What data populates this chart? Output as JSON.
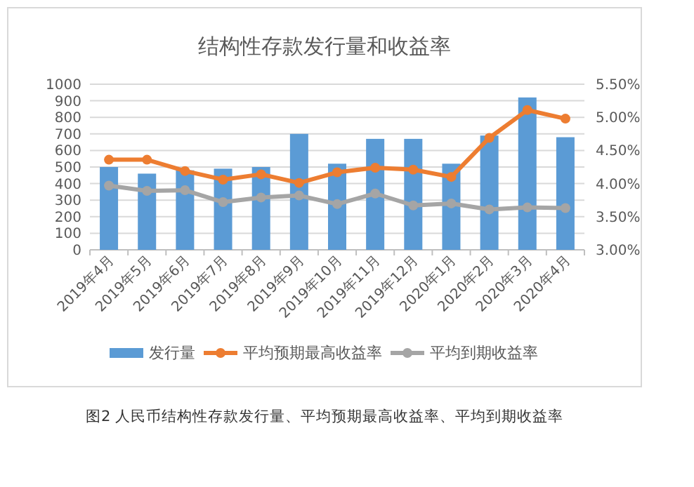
{
  "chart_data": {
    "type": "bar",
    "title": "结构性存款发行量和收益率",
    "categories": [
      "2019年4月",
      "2019年5月",
      "2019年6月",
      "2019年7月",
      "2019年8月",
      "2019年9月",
      "2019年10月",
      "2019年11月",
      "2019年12月",
      "2020年1月",
      "2020年2月",
      "2020年3月",
      "2020年4月"
    ],
    "series": [
      {
        "name": "发行量",
        "color": "#5b9bd5",
        "values": [
          500,
          460,
          480,
          490,
          500,
          700,
          520,
          670,
          670,
          520,
          690,
          920,
          680
        ]
      },
      {
        "name": "平均预期最高收益率",
        "type": "line",
        "axis": "y2",
        "color": "#ed7d31",
        "values": [
          4.36,
          4.36,
          4.19,
          4.06,
          4.14,
          4.01,
          4.17,
          4.24,
          4.21,
          4.1,
          4.69,
          5.11,
          4.98
        ]
      },
      {
        "name": "平均到期收益率",
        "type": "line",
        "axis": "y2",
        "color": "#a5a5a5",
        "values": [
          3.97,
          3.89,
          3.9,
          3.72,
          3.79,
          3.82,
          3.69,
          3.85,
          3.67,
          3.7,
          3.61,
          3.64,
          3.63
        ]
      }
    ],
    "ylim": [
      0,
      1000
    ],
    "yticks": [
      0,
      100,
      200,
      300,
      400,
      500,
      600,
      700,
      800,
      900,
      1000
    ],
    "y2lim": [
      3,
      5.5
    ],
    "y2ticks": [
      {
        "value": 3,
        "label": "3.00%"
      },
      {
        "value": 3.5,
        "label": "3.50%"
      },
      {
        "value": 4,
        "label": "4.00%"
      },
      {
        "value": 4.5,
        "label": "4.50%"
      },
      {
        "value": 5,
        "label": "5.00%"
      },
      {
        "value": 5.5,
        "label": "5.50%"
      }
    ],
    "grid": "y",
    "legend": "bottom",
    "marker": "circle",
    "line_style": "solid",
    "annotations": [
      "图2 人民币结构性存款发行量、平均预期最高收益率、平均到期收益率"
    ]
  }
}
